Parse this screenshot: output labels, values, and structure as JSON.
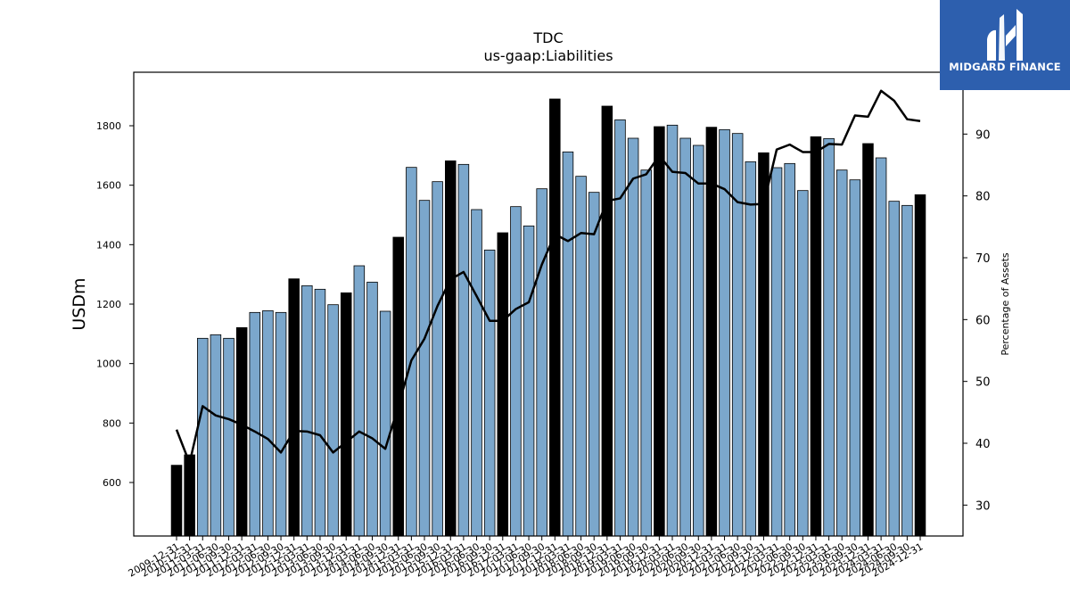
{
  "chart_data": {
    "type": "bar",
    "title": "TDC",
    "subtitle": "us-gaap:Liabilities",
    "ylabel": "USDm",
    "y2label": "Percentage of Assets",
    "ylim": [
      420,
      1980
    ],
    "y2lim": [
      25,
      100
    ],
    "yticks": [
      600,
      800,
      1000,
      1200,
      1400,
      1600,
      1800
    ],
    "y2ticks": [
      30,
      40,
      50,
      60,
      70,
      80,
      90
    ],
    "categories": [
      "2009-12-31",
      "2010-12-31",
      "2011-03-31",
      "2011-06-30",
      "2011-09-30",
      "2011-12-31",
      "2012-03-31",
      "2012-06-30",
      "2012-09-30",
      "2012-12-31",
      "2013-03-31",
      "2013-06-30",
      "2013-09-30",
      "2013-12-31",
      "2014-03-31",
      "2014-06-30",
      "2014-09-30",
      "2014-12-31",
      "2015-03-31",
      "2015-06-30",
      "2015-09-30",
      "2015-12-31",
      "2016-03-31",
      "2016-06-30",
      "2016-09-30",
      "2016-12-31",
      "2017-03-31",
      "2017-06-30",
      "2017-09-30",
      "2017-12-31",
      "2018-03-31",
      "2018-06-30",
      "2018-09-30",
      "2018-12-31",
      "2019-03-31",
      "2019-06-30",
      "2019-09-30",
      "2019-12-31",
      "2020-03-31",
      "2020-06-30",
      "2020-09-30",
      "2020-12-31",
      "2021-03-31",
      "2021-06-30",
      "2021-09-30",
      "2021-12-31",
      "2022-03-31",
      "2022-06-30",
      "2022-09-30",
      "2022-12-31",
      "2023-03-31",
      "2023-06-30",
      "2023-09-30",
      "2023-12-31",
      "2024-03-31",
      "2024-06-30",
      "2024-09-30",
      "2024-12-31"
    ],
    "tick_labels": [
      "2009-12-31",
      "2010-12-31",
      "2011-03-31",
      "2011-06-30",
      "2011-09-30",
      "2011-12-31",
      "2012-03-31",
      "2012-06-30",
      "2012-09-30",
      "2012-12-31",
      "2013-03-31",
      "2013-06-30",
      "2013-09-30",
      "2013-12-31",
      "2014-03-31",
      "2014-06-30",
      "2014-09-30",
      "2014-12-31",
      "2015-03-31",
      "2015-06-30",
      "2015-09-30",
      "2015-12-31",
      "2016-03-31",
      "2016-06-30",
      "2016-09-30",
      "2016-12-31",
      "2017-03-31",
      "2017-06-30",
      "2017-09-30",
      "2017-12-31",
      "2018-03-31",
      "2018-06-30",
      "2018-09-30",
      "2018-12-31",
      "2019-03-31",
      "2019-06-30",
      "2019-09-30",
      "2019-12-31",
      "2020-03-31",
      "2020-06-30",
      "2020-09-30",
      "2020-12-31",
      "2021-03-31",
      "2021-06-30",
      "2021-09-30",
      "2021-12-31",
      "2022-03-31",
      "2022-06-30",
      "2022-09-30",
      "2022-12-31",
      "2023-03-31",
      "2023-06-30",
      "2023-09-30",
      "2023-12-31",
      "2024-03-31",
      "2024-06-30",
      "2024-09-30",
      "2024-12-31"
    ],
    "series": [
      {
        "axis": "left",
        "kind": "bar",
        "values": [
          658,
          693,
          1085,
          1097,
          1085,
          1121,
          1172,
          1178,
          1172,
          1285,
          1262,
          1250,
          1198,
          1238,
          1329,
          1274,
          1176,
          1425,
          1660,
          1549,
          1612,
          1682,
          1670,
          1518,
          1382,
          1440,
          1528,
          1463,
          1588,
          1890,
          1712,
          1630,
          1576,
          1866,
          1820,
          1758,
          1651,
          1797,
          1802,
          1758,
          1734,
          1795,
          1787,
          1774,
          1679,
          1709,
          1659,
          1673,
          1582,
          1763,
          1757,
          1651,
          1618,
          1740,
          1692,
          1546,
          1532,
          1568
        ],
        "year_end": [
          true,
          true,
          false,
          false,
          false,
          true,
          false,
          false,
          false,
          true,
          false,
          false,
          false,
          true,
          false,
          false,
          false,
          true,
          false,
          false,
          false,
          true,
          false,
          false,
          false,
          true,
          false,
          false,
          false,
          true,
          false,
          false,
          false,
          true,
          false,
          false,
          false,
          true,
          false,
          false,
          false,
          true,
          false,
          false,
          false,
          true,
          false,
          false,
          false,
          true,
          false,
          false,
          false,
          true,
          false,
          false,
          false,
          true
        ]
      },
      {
        "axis": "right",
        "kind": "line",
        "values": [
          42.2,
          36.8,
          46.0,
          44.5,
          43.9,
          43.0,
          41.9,
          40.7,
          38.5,
          42.0,
          41.9,
          41.3,
          38.5,
          40.2,
          41.9,
          40.8,
          39.1,
          46.0,
          53.4,
          56.9,
          62.2,
          66.5,
          67.7,
          63.8,
          59.8,
          59.8,
          61.7,
          62.8,
          68.9,
          73.8,
          72.7,
          74.0,
          73.8,
          79.2,
          79.6,
          82.8,
          83.5,
          86.5,
          83.9,
          83.7,
          82.0,
          82.0,
          81.1,
          79.0,
          78.6,
          78.7,
          87.5,
          88.3,
          87.1,
          87.1,
          88.4,
          88.3,
          93.0,
          92.8,
          97.0,
          95.4,
          92.4,
          92.1
        ]
      }
    ],
    "colors": {
      "bar": "#7ba7cc",
      "bar_year_end": "#000000",
      "line": "#000000"
    },
    "grid": false,
    "legend": "none"
  },
  "logo": {
    "text": "MIDGARD FINANCE",
    "color": "#2d5fae"
  }
}
